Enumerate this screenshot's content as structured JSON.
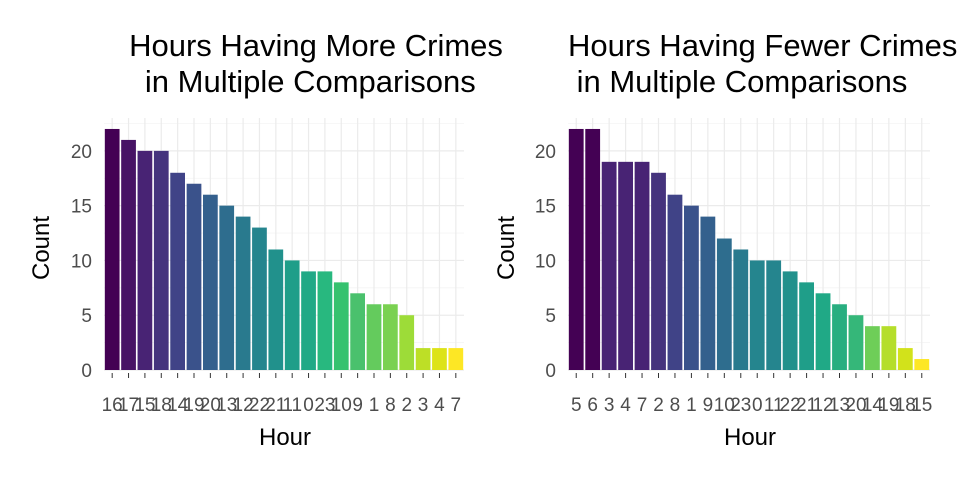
{
  "chart_data": [
    {
      "type": "bar",
      "title_lines": [
        "Hours Having More Crimes",
        " in Multiple Comparisons"
      ],
      "xlabel": "Hour",
      "ylabel": "Count",
      "categories": [
        "16",
        "17",
        "15",
        "18",
        "14",
        "19",
        "20",
        "13",
        "12",
        "22",
        "21",
        "11",
        "0",
        "23",
        "10",
        "9",
        "1",
        "8",
        "2",
        "3",
        "4",
        "7"
      ],
      "values": [
        22,
        21,
        20,
        20,
        18,
        17,
        16,
        15,
        14,
        13,
        11,
        10,
        9,
        9,
        8,
        7,
        6,
        6,
        5,
        2,
        2,
        2
      ],
      "ylim": [
        0,
        23
      ],
      "yticks": [
        0,
        5,
        10,
        15,
        20
      ],
      "colors": [
        "#440154",
        "#471365",
        "#482374",
        "#45337d",
        "#404387",
        "#3a528b",
        "#34608d",
        "#2e6d8e",
        "#297a8e",
        "#25858e",
        "#21918c",
        "#1f9e89",
        "#20a986",
        "#28b87f",
        "#35c26f",
        "#4ac16d",
        "#64cb5d",
        "#7ad151",
        "#9ddc38",
        "#bddf26",
        "#dde318",
        "#fde725"
      ],
      "grid": true,
      "legend": "none"
    },
    {
      "type": "bar",
      "title_lines": [
        "Hours Having Fewer Crimes",
        " in Multiple Comparisons"
      ],
      "xlabel": "Hour",
      "ylabel": "Count",
      "categories": [
        "5",
        "6",
        "3",
        "4",
        "7",
        "2",
        "8",
        "1",
        "9",
        "10",
        "23",
        "0",
        "11",
        "22",
        "21",
        "12",
        "13",
        "20",
        "14",
        "19",
        "18",
        "15"
      ],
      "values": [
        22,
        22,
        19,
        19,
        19,
        18,
        16,
        15,
        14,
        12,
        11,
        10,
        10,
        9,
        8,
        7,
        6,
        5,
        4,
        4,
        2,
        1
      ],
      "ylim": [
        0,
        23
      ],
      "yticks": [
        0,
        5,
        10,
        15,
        20
      ],
      "colors": [
        "#440154",
        "#440154",
        "#482374",
        "#482374",
        "#482374",
        "#45337d",
        "#404387",
        "#3a528b",
        "#34608d",
        "#2e6d8e",
        "#297a8e",
        "#25858e",
        "#25858e",
        "#21918c",
        "#1f9e89",
        "#20a986",
        "#28ae80",
        "#35b779",
        "#6ece58",
        "#b5de2b",
        "#d2e21b",
        "#fde725"
      ],
      "grid": true,
      "legend": "none"
    }
  ]
}
